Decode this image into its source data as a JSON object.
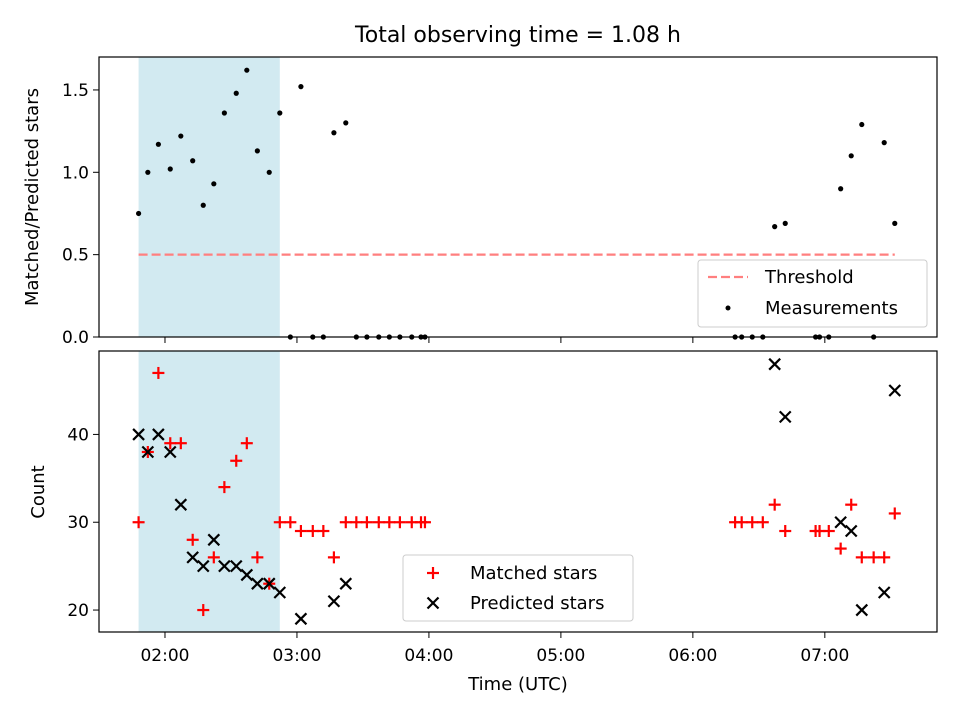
{
  "figure": {
    "title": "Total observing time = 1.08 h"
  },
  "chart_data": [
    {
      "type": "scatter",
      "panel": "top",
      "ylabel": "Matched/Predicted stars",
      "ylim": [
        0,
        1.7
      ],
      "yticks": [
        0.0,
        0.5,
        1.0,
        1.5
      ],
      "ytick_labels": [
        "0.0",
        "0.5",
        "1.0",
        "1.5"
      ],
      "xlim_hours": [
        1.5,
        7.85
      ],
      "xticks_hours": [
        2,
        3,
        4,
        5,
        6,
        7
      ],
      "highlight_span_hours": [
        1.8,
        2.87
      ],
      "highlight_color": "#add8e6",
      "legend": {
        "location": "lower right",
        "threshold_label": "Threshold",
        "measurements_label": "Measurements"
      },
      "threshold": {
        "y": 0.5,
        "x_range_hours": [
          1.8,
          7.53
        ],
        "color": "#ff7f7f"
      },
      "measurements": {
        "color": "#000000",
        "x_hours": [
          1.8,
          1.87,
          1.95,
          2.04,
          2.12,
          2.21,
          2.29,
          2.37,
          2.45,
          2.54,
          2.62,
          2.7,
          2.79,
          2.87,
          2.95,
          3.03,
          3.12,
          3.2,
          3.28,
          3.37,
          3.45,
          3.53,
          3.62,
          3.7,
          3.78,
          3.87,
          3.94,
          3.97,
          6.32,
          6.37,
          6.45,
          6.53,
          6.62,
          6.7,
          6.93,
          6.96,
          7.03,
          7.12,
          7.2,
          7.28,
          7.37,
          7.45,
          7.53
        ],
        "y": [
          0.75,
          1.0,
          1.17,
          1.02,
          1.22,
          1.07,
          0.8,
          0.93,
          1.36,
          1.48,
          1.62,
          1.13,
          1.0,
          1.36,
          0.0,
          1.52,
          0.0,
          0.0,
          1.24,
          1.3,
          0.0,
          0.0,
          0.0,
          0.0,
          0.0,
          0.0,
          0.0,
          0.0,
          0.0,
          0.0,
          0.0,
          0.0,
          0.67,
          0.69,
          0.0,
          0.0,
          0.0,
          0.9,
          1.1,
          1.29,
          0.0,
          1.18,
          0.69
        ]
      }
    },
    {
      "type": "scatter",
      "panel": "bottom",
      "xlabel": "Time (UTC)",
      "ylabel": "Count",
      "ylim": [
        17.5,
        49.5
      ],
      "yticks": [
        20,
        30,
        40
      ],
      "ytick_labels": [
        "20",
        "30",
        "40"
      ],
      "xlim_hours": [
        1.5,
        7.85
      ],
      "xticks_hours": [
        2,
        3,
        4,
        5,
        6,
        7
      ],
      "xtick_labels": [
        "02:00",
        "03:00",
        "04:00",
        "05:00",
        "06:00",
        "07:00"
      ],
      "highlight_span_hours": [
        1.8,
        2.87
      ],
      "highlight_color": "#add8e6",
      "legend": {
        "location": "lower center"
      },
      "series": [
        {
          "name": "Matched stars",
          "marker": "+",
          "color": "#ff0000",
          "x_hours": [
            1.8,
            1.87,
            1.95,
            2.04,
            2.12,
            2.21,
            2.29,
            2.37,
            2.45,
            2.54,
            2.62,
            2.7,
            2.79,
            2.87,
            2.95,
            3.03,
            3.12,
            3.2,
            3.28,
            3.37,
            3.45,
            3.53,
            3.62,
            3.7,
            3.78,
            3.87,
            3.94,
            3.97,
            6.32,
            6.37,
            6.45,
            6.53,
            6.62,
            6.7,
            6.93,
            6.96,
            7.03,
            7.12,
            7.2,
            7.28,
            7.37,
            7.45,
            7.53
          ],
          "y": [
            30,
            38,
            47,
            39,
            39,
            28,
            20,
            26,
            34,
            37,
            39,
            26,
            23,
            30,
            30,
            29,
            29,
            29,
            26,
            30,
            30,
            30,
            30,
            30,
            30,
            30,
            30,
            30,
            30,
            30,
            30,
            30,
            32,
            29,
            29,
            29,
            29,
            27,
            32,
            26,
            26,
            26,
            31
          ]
        },
        {
          "name": "Predicted stars",
          "marker": "x",
          "color": "#000000",
          "x_hours": [
            1.8,
            1.87,
            1.95,
            2.04,
            2.12,
            2.21,
            2.29,
            2.37,
            2.45,
            2.54,
            2.62,
            2.7,
            2.79,
            2.87,
            3.03,
            3.28,
            3.37,
            6.62,
            6.7,
            7.12,
            7.2,
            7.28,
            7.45,
            7.53
          ],
          "y": [
            40,
            38,
            40,
            38,
            32,
            26,
            25,
            28,
            25,
            25,
            24,
            23,
            23,
            22,
            19,
            21,
            23,
            48,
            42,
            30,
            29,
            20,
            22,
            45
          ]
        }
      ]
    }
  ]
}
